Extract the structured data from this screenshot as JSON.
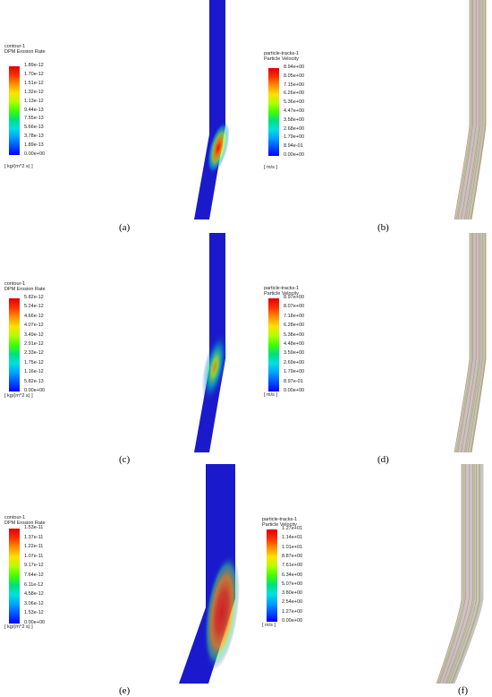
{
  "panels": [
    {
      "id": "a",
      "kind": "erosion",
      "title_line1": "contour-1",
      "title_line2": "DPM Erosion Rate",
      "ticks": [
        "1.89e-12",
        "1.70e-12",
        "1.51e-12",
        "1.32e-12",
        "1.13e-12",
        "9.44e-13",
        "7.55e-13",
        "5.66e-13",
        "3.78e-13",
        "1.89e-13",
        "0.00e+00"
      ],
      "unit": "[ kg/(m^2 s) ]",
      "caption": "(a)"
    },
    {
      "id": "b",
      "kind": "velocity",
      "title_line1": "particle-tracks-1",
      "title_line2": "Particle Velocity",
      "ticks": [
        "8.94e+00",
        "8.05e+00",
        "7.15e+00",
        "6.26e+00",
        "5.36e+00",
        "4.47e+00",
        "3.58e+00",
        "2.68e+00",
        "1.79e+00",
        "8.94e-01",
        "0.00e+00"
      ],
      "unit": "[ m/s ]",
      "caption": "(b)"
    },
    {
      "id": "c",
      "kind": "erosion",
      "title_line1": "contour-1",
      "title_line2": "DPM Erosion Rate",
      "ticks": [
        "5.82e-12",
        "5.24e-12",
        "4.66e-12",
        "4.07e-12",
        "3.49e-12",
        "2.91e-12",
        "2.33e-12",
        "1.75e-12",
        "1.16e-12",
        "5.82e-13",
        "0.00e+00"
      ],
      "unit": "[ kg/(m^2 s) ]",
      "caption": "(c)"
    },
    {
      "id": "d",
      "kind": "velocity",
      "title_line1": "particle-tracks-1",
      "title_line2": "Particle Velocity",
      "ticks": [
        "8.97e+00",
        "8.07e+00",
        "7.18e+00",
        "6.28e+00",
        "5.38e+00",
        "4.48e+00",
        "3.59e+00",
        "2.69e+00",
        "1.79e+00",
        "8.97e-01",
        "0.00e+00"
      ],
      "unit": "[ m/s ]",
      "caption": "(d)"
    },
    {
      "id": "e",
      "kind": "erosion",
      "title_line1": "contour-1",
      "title_line2": "DPM Erosion Rate",
      "ticks": [
        "1.53e-11",
        "1.37e-11",
        "1.22e-11",
        "1.07e-11",
        "9.17e-12",
        "7.64e-12",
        "6.11e-12",
        "4.58e-12",
        "3.06e-12",
        "1.53e-12",
        "0.00e+00"
      ],
      "unit": "[ kg/(m^2 s) ]",
      "caption": "(e)"
    },
    {
      "id": "f",
      "kind": "velocity",
      "title_line1": "particle-tracks-1",
      "title_line2": "Particle Velocity",
      "ticks": [
        "1.27e+01",
        "1.14e+01",
        "1.01e+01",
        "8.87e+00",
        "7.61e+00",
        "6.34e+00",
        "5.07e+00",
        "3.80e+00",
        "2.54e+00",
        "1.27e+00",
        "0.00e+00"
      ],
      "unit": "[ m/s ]",
      "caption": "(f)"
    }
  ],
  "colormap": [
    "#0000ff",
    "#0050ff",
    "#00a0ff",
    "#00e0e0",
    "#00e080",
    "#40ff00",
    "#b0ff00",
    "#ffe000",
    "#ff9000",
    "#ff3000",
    "#e00000"
  ],
  "colors": {
    "pipe_blue": "#1a1acc",
    "hotspot_red": "#e01010",
    "track_gray": "#b8b8b8",
    "track_green": "#6fbf4a",
    "track_red": "#d07a6a"
  }
}
